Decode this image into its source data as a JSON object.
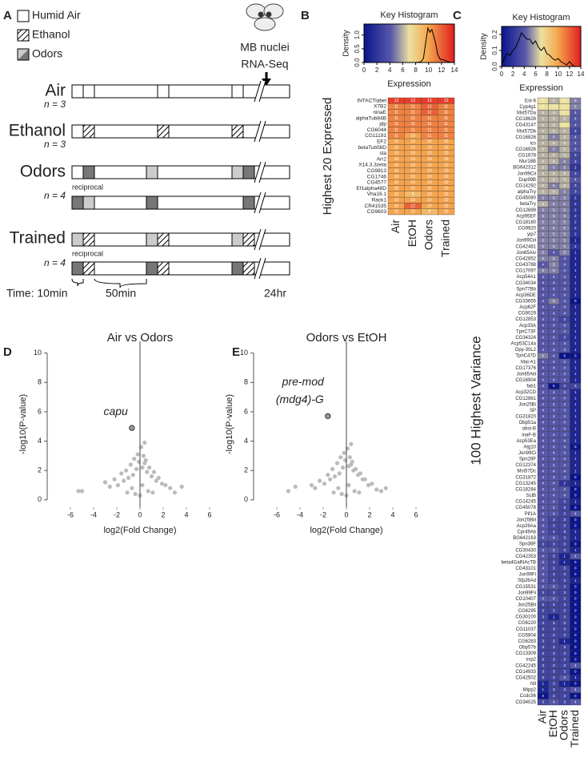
{
  "panel_labels": [
    "A",
    "B",
    "C",
    "D",
    "E"
  ],
  "protocol": {
    "legend": [
      "Humid Air",
      "Ethanol",
      "Odors"
    ],
    "sequencing": [
      "MB nuclei",
      "RNA-Seq"
    ],
    "groups": [
      {
        "name": "Air",
        "n": "n = 3"
      },
      {
        "name": "Ethanol",
        "n": "n = 3"
      },
      {
        "name": "Odors",
        "n": "n = 4",
        "note": "reciprocal"
      },
      {
        "name": "Trained",
        "n": "n = 4",
        "note": "reciprocal"
      }
    ],
    "time_label": "Time: 10min",
    "interval": "50min",
    "end": "24hr"
  },
  "chart_data": [
    {
      "type": "line",
      "title": "Key Histogram",
      "x_label": "Expression",
      "y_label": "Density",
      "color": "#000000",
      "x": [
        0,
        8,
        8.8,
        9.2,
        9.6,
        9.9,
        10.2,
        10.5,
        10.8,
        11.1,
        11.4,
        11.8,
        12.3,
        12.8,
        13.3,
        14
      ],
      "values": [
        0,
        0,
        0.02,
        0.15,
        0.8,
        1.25,
        1.1,
        1.2,
        0.95,
        0.7,
        0.3,
        0.12,
        0.1,
        0.05,
        0.01,
        0
      ],
      "xlim": [
        0,
        14
      ],
      "xticks": [
        0,
        2,
        4,
        6,
        8,
        10,
        12,
        14
      ],
      "ylim": [
        0,
        1.4
      ],
      "yticks": [
        {
          "value": 0,
          "label": "0.0"
        },
        {
          "value": 0.5,
          "label": "0.5"
        },
        {
          "value": 1,
          "label": "1.0"
        }
      ]
    },
    {
      "type": "heatmap",
      "title": "Highest 20 Expressed",
      "columns": [
        "Air",
        "EtOH",
        "Odors",
        "Trained"
      ],
      "rows": [
        "INTACTlabel",
        "X7B2",
        "ninaE",
        "alphaTub84B",
        "jdp",
        "CG6044",
        "CG11191",
        "EF2",
        "betaTub56D",
        "sta",
        "Arr2",
        "X14.3.3zeta",
        "CG9813",
        "CG1746",
        "CG4577",
        "Ef1alpha48D",
        "Vha16.1",
        "Rack1",
        "CR41535",
        "CG9603"
      ],
      "values": [
        [
          13,
          13,
          13,
          13
        ],
        [
          11,
          11,
          12,
          11
        ],
        [
          11,
          11,
          12,
          11
        ],
        [
          11,
          11,
          11,
          11
        ],
        [
          11,
          11,
          11,
          11
        ],
        [
          11,
          11,
          11,
          11
        ],
        [
          11,
          10,
          11,
          11
        ],
        [
          10,
          10,
          10,
          10
        ],
        [
          10,
          10,
          10,
          10
        ],
        [
          10,
          10,
          10,
          10
        ],
        [
          10,
          10,
          10,
          10
        ],
        [
          10,
          10,
          10,
          10
        ],
        [
          10,
          10,
          10,
          10
        ],
        [
          10,
          10,
          10,
          10
        ],
        [
          10,
          10,
          10,
          10
        ],
        [
          10,
          10,
          10,
          10
        ],
        [
          10,
          9,
          10,
          10
        ],
        [
          10,
          10,
          10,
          10
        ],
        [
          10,
          12,
          10,
          10
        ],
        [
          10,
          10,
          9,
          10
        ]
      ]
    },
    {
      "type": "line",
      "title": "Key Histogram",
      "x_label": "Expression",
      "y_label": "Density",
      "color": "#000000",
      "x": [
        0,
        0.5,
        1,
        1.5,
        2,
        2.5,
        3,
        3.5,
        4,
        4.5,
        5,
        5.5,
        6,
        6.5,
        7,
        7.5,
        8,
        8.5,
        9,
        9.5,
        10,
        10.5,
        11,
        11.5,
        12,
        12.5,
        13,
        14
      ],
      "values": [
        0.01,
        0.05,
        0.08,
        0.07,
        0.1,
        0.12,
        0.16,
        0.21,
        0.19,
        0.17,
        0.17,
        0.14,
        0.16,
        0.12,
        0.1,
        0.12,
        0.08,
        0.07,
        0.05,
        0.04,
        0.05,
        0.03,
        0.02,
        0.01,
        0.03,
        0.01,
        0,
        0
      ],
      "xlim": [
        0,
        14
      ],
      "xticks": [
        0,
        2,
        4,
        6,
        8,
        10,
        12,
        14
      ],
      "ylim": [
        0,
        0.25
      ],
      "yticks": [
        {
          "value": 0,
          "label": "0.0"
        },
        {
          "value": 0.1,
          "label": "0.1"
        },
        {
          "value": 0.2,
          "label": "0.2"
        }
      ]
    },
    {
      "type": "heatmap",
      "title": "100 Highest Variance",
      "columns": [
        "Air",
        "EtOH",
        "Odors",
        "Trained"
      ],
      "rows": [
        "Est-6",
        "Cyp4g1",
        "Mst57Da",
        "CG18628",
        "CG43147",
        "Mst57Db",
        "CG16826",
        "ics",
        "CG16926",
        "CG1678",
        "Mur18B",
        "BG642312",
        "Jon99Cii",
        "Dup99B",
        "CG14292",
        "alphaTry",
        "CG45080",
        "betaTry",
        "CG12699",
        "Acp95EF",
        "CG18180",
        "CG9920",
        "yip7",
        "Jon99Ciii",
        "CG42481",
        "Jon65Aiv",
        "CG42852",
        "CG43788",
        "CG17097",
        "Acp54A1",
        "CG34034",
        "Spn77Bb",
        "Acp36DE",
        "CG33655",
        "Acp62F",
        "CG9029",
        "CG12853",
        "Acp33A",
        "TpnC73F",
        "CG34324",
        "Acp53C14a",
        "Dpy-30L2",
        "TpnC47D",
        "Mal-A1",
        "CG17376",
        "Jon65Aiii",
        "CG16904",
        "fab1",
        "Acp32CD",
        "CG12861",
        "Jon25Bi",
        "SP",
        "CG31820",
        "Obp51a",
        "obst-B",
        "inaF-B",
        "Acp53Ea",
        "Atg10",
        "Jon99Ci",
        "Spn28F",
        "CG12374",
        "Mst57Dc",
        "CG31872",
        "CG13245",
        "CG18284",
        "SclB",
        "CG14245",
        "CG45078",
        "Pif1A",
        "Jon25Biii",
        "Acp26Aa",
        "Cpr49Ab",
        "BG642163",
        "Spn38F",
        "CG30430",
        "CG42353",
        "beta4GalNAcTB",
        "CG43101",
        "Jon99Fi",
        "Sfp26Ad",
        "CG15531",
        "Jon99Fii",
        "CG10407",
        "Jon25Bii",
        "CG6295",
        "CG30100",
        "CG6220",
        "CG11037",
        "CG5804",
        "CG6283",
        "Obp57b",
        "CG13309",
        "ssp2",
        "CG42245",
        "CG14933",
        "CG42502",
        "Nll",
        "Mipp2",
        "Ccdc56",
        "CG34025"
      ],
      "values": [
        [
          7,
          6,
          7,
          5
        ],
        [
          7,
          7,
          7,
          5
        ],
        [
          6,
          6,
          7,
          4
        ],
        [
          6,
          6,
          6,
          4
        ],
        [
          6,
          6,
          7,
          4
        ],
        [
          6,
          6,
          6,
          3
        ],
        [
          6,
          5,
          6,
          4
        ],
        [
          6,
          6,
          6,
          4
        ],
        [
          6,
          5,
          6,
          4
        ],
        [
          6,
          6,
          6,
          3
        ],
        [
          6,
          6,
          5,
          3
        ],
        [
          6,
          5,
          5,
          2
        ],
        [
          6,
          6,
          6,
          3
        ],
        [
          6,
          6,
          6,
          4
        ],
        [
          6,
          5,
          6,
          3
        ],
        [
          6,
          6,
          5,
          3
        ],
        [
          5,
          5,
          5,
          2
        ],
        [
          6,
          5,
          5,
          2
        ],
        [
          5,
          5,
          5,
          2
        ],
        [
          5,
          5,
          5,
          2
        ],
        [
          5,
          5,
          5,
          2
        ],
        [
          5,
          5,
          5,
          2
        ],
        [
          5,
          5,
          5,
          2
        ],
        [
          5,
          5,
          5,
          1
        ],
        [
          5,
          5,
          5,
          2
        ],
        [
          5,
          4,
          5,
          1
        ],
        [
          5,
          5,
          4,
          1
        ],
        [
          4,
          5,
          4,
          1
        ],
        [
          5,
          5,
          4,
          1
        ],
        [
          4,
          4,
          4,
          1
        ],
        [
          4,
          4,
          4,
          1
        ],
        [
          4,
          4,
          4,
          1
        ],
        [
          4,
          4,
          4,
          1
        ],
        [
          4,
          5,
          4,
          0
        ],
        [
          4,
          4,
          4,
          1
        ],
        [
          4,
          4,
          4,
          1
        ],
        [
          4,
          4,
          3,
          1
        ],
        [
          4,
          4,
          4,
          1
        ],
        [
          4,
          4,
          4,
          1
        ],
        [
          4,
          4,
          3,
          1
        ],
        [
          4,
          4,
          4,
          1
        ],
        [
          4,
          4,
          4,
          1
        ],
        [
          5,
          4,
          0,
          0
        ],
        [
          4,
          4,
          4,
          1
        ],
        [
          4,
          4,
          4,
          1
        ],
        [
          4,
          4,
          4,
          1
        ],
        [
          4,
          4,
          4,
          1
        ],
        [
          4,
          0,
          3,
          3
        ],
        [
          4,
          4,
          4,
          1
        ],
        [
          4,
          4,
          4,
          1
        ],
        [
          4,
          4,
          4,
          1
        ],
        [
          4,
          4,
          4,
          1
        ],
        [
          4,
          4,
          4,
          1
        ],
        [
          4,
          4,
          4,
          1
        ],
        [
          4,
          4,
          4,
          1
        ],
        [
          4,
          4,
          4,
          1
        ],
        [
          4,
          4,
          4,
          1
        ],
        [
          4,
          4,
          4,
          0
        ],
        [
          4,
          4,
          4,
          1
        ],
        [
          4,
          4,
          4,
          1
        ],
        [
          4,
          4,
          4,
          1
        ],
        [
          4,
          4,
          4,
          1
        ],
        [
          4,
          4,
          4,
          0
        ],
        [
          4,
          4,
          2,
          1
        ],
        [
          4,
          4,
          4,
          0
        ],
        [
          4,
          4,
          4,
          0
        ],
        [
          4,
          4,
          3,
          1
        ],
        [
          4,
          4,
          3,
          0
        ],
        [
          4,
          4,
          3,
          4
        ],
        [
          4,
          3,
          3,
          0
        ],
        [
          4,
          3,
          3,
          0
        ],
        [
          4,
          3,
          3,
          1
        ],
        [
          4,
          4,
          3,
          1
        ],
        [
          3,
          3,
          3,
          0
        ],
        [
          4,
          4,
          3,
          1
        ],
        [
          4,
          3,
          1,
          4
        ],
        [
          4,
          3,
          1,
          0
        ],
        [
          4,
          3,
          3,
          0
        ],
        [
          4,
          3,
          3,
          0
        ],
        [
          4,
          3,
          3,
          1
        ],
        [
          4,
          4,
          3,
          0
        ],
        [
          3,
          3,
          3,
          0
        ],
        [
          4,
          4,
          3,
          0
        ],
        [
          3,
          3,
          3,
          0
        ],
        [
          3,
          3,
          3,
          0
        ],
        [
          3,
          1,
          3,
          0
        ],
        [
          3,
          3,
          3,
          0
        ],
        [
          3,
          3,
          3,
          0
        ],
        [
          3,
          3,
          3,
          0
        ],
        [
          3,
          3,
          1,
          0
        ],
        [
          3,
          3,
          3,
          0
        ],
        [
          3,
          3,
          3,
          0
        ],
        [
          3,
          3,
          3,
          0
        ],
        [
          3,
          3,
          3,
          4
        ],
        [
          3,
          3,
          3,
          0
        ],
        [
          3,
          3,
          4,
          1
        ],
        [
          1,
          3,
          1,
          0
        ],
        [
          1,
          3,
          3,
          4
        ],
        [
          0,
          3,
          3,
          0
        ],
        [
          3,
          4,
          3,
          4
        ]
      ]
    },
    {
      "type": "scatter",
      "title": "Air vs Odors",
      "x_label": "log2(Fold Change)",
      "y_label": "-log10(P-value)",
      "color": "#bbbbbb",
      "x": [
        -5.3,
        -5.0,
        -3.0,
        -2.6,
        -2.2,
        -1.9,
        -1.6,
        -1.4,
        -1.2,
        -1.0,
        -0.8,
        -0.6,
        -0.5,
        -0.3,
        -0.2,
        -0.1,
        0.1,
        0.2,
        0.3,
        0.4,
        0.5,
        0.6,
        0.8,
        1.0,
        1.2,
        1.4,
        1.6,
        1.9,
        2.2,
        2.6,
        3.0,
        3.6,
        -0.4,
        0.0,
        0.2,
        -0.7,
        0.7,
        -1.1,
        1.1,
        0.4
      ],
      "y": [
        0.6,
        0.6,
        1.2,
        0.9,
        1.4,
        1.0,
        1.8,
        1.3,
        2.0,
        1.5,
        2.4,
        1.7,
        2.8,
        2.1,
        3.1,
        2.6,
        3.6,
        2.2,
        3.0,
        2.5,
        2.7,
        1.9,
        2.2,
        1.6,
        1.9,
        1.3,
        1.5,
        1.1,
        1.0,
        0.8,
        0.5,
        0.9,
        0.4,
        0.3,
        1.0,
        0.8,
        0.6,
        0.5,
        0.5,
        3.9
      ],
      "highlight": {
        "label": [
          "capu"
        ],
        "x": -0.7,
        "y": 4.9
      },
      "xlim": [
        -8,
        8
      ],
      "xticks": [
        -6,
        -4,
        -2,
        0,
        2,
        4,
        6
      ],
      "ylim": [
        -0.5,
        10.8
      ],
      "yticks": [
        0,
        2,
        4,
        6,
        8,
        10
      ]
    },
    {
      "type": "scatter",
      "title": "Odors vs EtOH",
      "x_label": "log2(Fold Change)",
      "y_label": "-log10(P-value)",
      "color": "#bbbbbb",
      "x": [
        -5.0,
        -4.4,
        -3.0,
        -2.7,
        -2.3,
        -1.9,
        -1.6,
        -1.4,
        -1.2,
        -1.0,
        -0.8,
        -0.6,
        -0.5,
        -0.3,
        -0.2,
        -0.1,
        0.1,
        0.2,
        0.3,
        0.4,
        0.5,
        0.6,
        0.8,
        1.0,
        1.2,
        1.4,
        1.6,
        1.9,
        2.2,
        2.6,
        3.0,
        3.4,
        -0.4,
        0.0,
        0.2,
        -0.7,
        0.7,
        -1.1,
        1.1,
        0.4
      ],
      "y": [
        0.6,
        0.9,
        1.0,
        0.8,
        1.3,
        1.1,
        1.7,
        1.4,
        2.1,
        1.6,
        2.5,
        1.8,
        2.9,
        2.2,
        3.2,
        2.7,
        3.5,
        2.3,
        2.9,
        2.4,
        2.6,
        2.0,
        2.1,
        1.7,
        1.8,
        1.4,
        1.4,
        1.0,
        1.1,
        0.7,
        0.6,
        0.8,
        0.4,
        0.3,
        1.0,
        0.8,
        0.6,
        0.5,
        0.5,
        3.8
      ],
      "highlight": {
        "label": [
          "pre-mod",
          "(mdg4)-G"
        ],
        "x": -1.6,
        "y": 5.7
      },
      "xlim": [
        -8,
        8
      ],
      "xticks": [
        -6,
        -4,
        -2,
        0,
        2,
        4,
        6
      ],
      "ylim": [
        -0.5,
        10.8
      ],
      "yticks": [
        0,
        2,
        4,
        6,
        8,
        10
      ]
    }
  ]
}
